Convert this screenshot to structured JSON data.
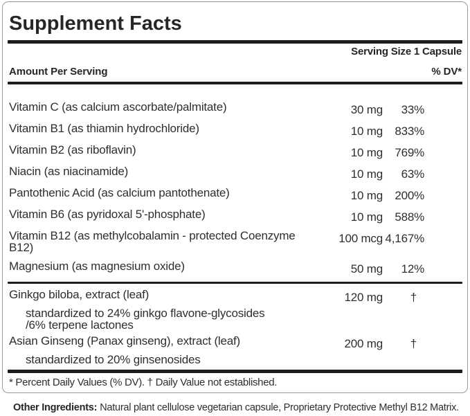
{
  "panel": {
    "title": "Supplement Facts",
    "serving_size": "Serving Size 1 Capsule",
    "header": {
      "amount_label": "Amount Per Serving",
      "dv_label": "% DV*"
    },
    "rows": [
      {
        "name": "Vitamin C (as calcium ascorbate/palmitate)",
        "amount": "30 mg",
        "dv": "33%"
      },
      {
        "name": "Vitamin B1 (as thiamin hydrochloride)",
        "amount": "10 mg",
        "dv": "833%"
      },
      {
        "name": "Vitamin B2 (as riboflavin)",
        "amount": "10 mg",
        "dv": "769%"
      },
      {
        "name": "Niacin (as niacinamide)",
        "amount": "10 mg",
        "dv": "63%"
      },
      {
        "name": "Pantothenic Acid (as calcium pantothenate)",
        "amount": "10 mg",
        "dv": "200%"
      },
      {
        "name": "Vitamin B6 (as pyridoxal 5'-phosphate)",
        "amount": "10 mg",
        "dv": "588%"
      },
      {
        "name": "Vitamin B12 (as methylcobalamin - protected Coenzyme B12)",
        "amount": "100 mcg",
        "dv": "4,167%"
      },
      {
        "name": "Magnesium (as magnesium oxide)",
        "amount": "50 mg",
        "dv": "12%"
      }
    ],
    "herb_rows": [
      {
        "name": "Ginkgo biloba, extract (leaf)",
        "amount": "120 mg",
        "dv": "†",
        "note": "standardized to 24% ginkgo flavone-glycosides /6% terpene lactones"
      },
      {
        "name": "Asian Ginseng (Panax ginseng), extract (leaf)",
        "amount": "200 mg",
        "dv": "†",
        "note": "standardized to 20% ginsenosides"
      }
    ],
    "footnote": "* Percent Daily Values (% DV). † Daily Value not established."
  },
  "other_ingredients": {
    "label": "Other Ingredients:",
    "text": "Natural plant cellulose vegetarian capsule, Proprietary Protective Methyl B12 Matrix."
  },
  "colors": {
    "rule_black": "#1c1c1c",
    "border_gray": "#9b9b9b",
    "text": "#2e2e2e",
    "background": "#ffffff"
  }
}
